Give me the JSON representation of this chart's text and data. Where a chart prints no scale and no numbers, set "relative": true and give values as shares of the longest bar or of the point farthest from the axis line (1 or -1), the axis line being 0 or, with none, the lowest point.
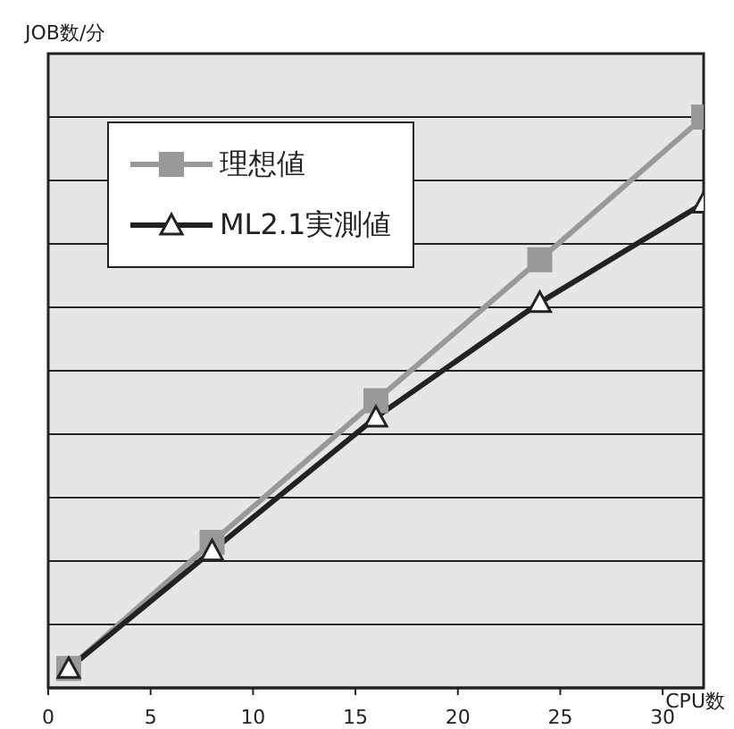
{
  "chart_data": {
    "type": "line",
    "xlabel": "CPU数",
    "ylabel": "JOB数/分",
    "relative": true,
    "xlim": [
      0,
      32
    ],
    "xticks": [
      0,
      5,
      10,
      15,
      20,
      25,
      30
    ],
    "grid": "y",
    "legend": "top left",
    "line_style": "solid",
    "series": [
      {
        "name": "理想値",
        "color": "#999999",
        "marker": "square",
        "x": [
          1,
          8,
          16,
          24,
          32
        ],
        "values": [
          0.034,
          0.255,
          0.503,
          0.75,
          1
        ]
      },
      {
        "name": "ML2.1実測値",
        "color": "#222222",
        "marker": "triangle",
        "x": [
          1,
          8,
          16,
          24,
          32
        ],
        "values": [
          0.034,
          0.24,
          0.474,
          0.675,
          0.849
        ]
      }
    ]
  }
}
